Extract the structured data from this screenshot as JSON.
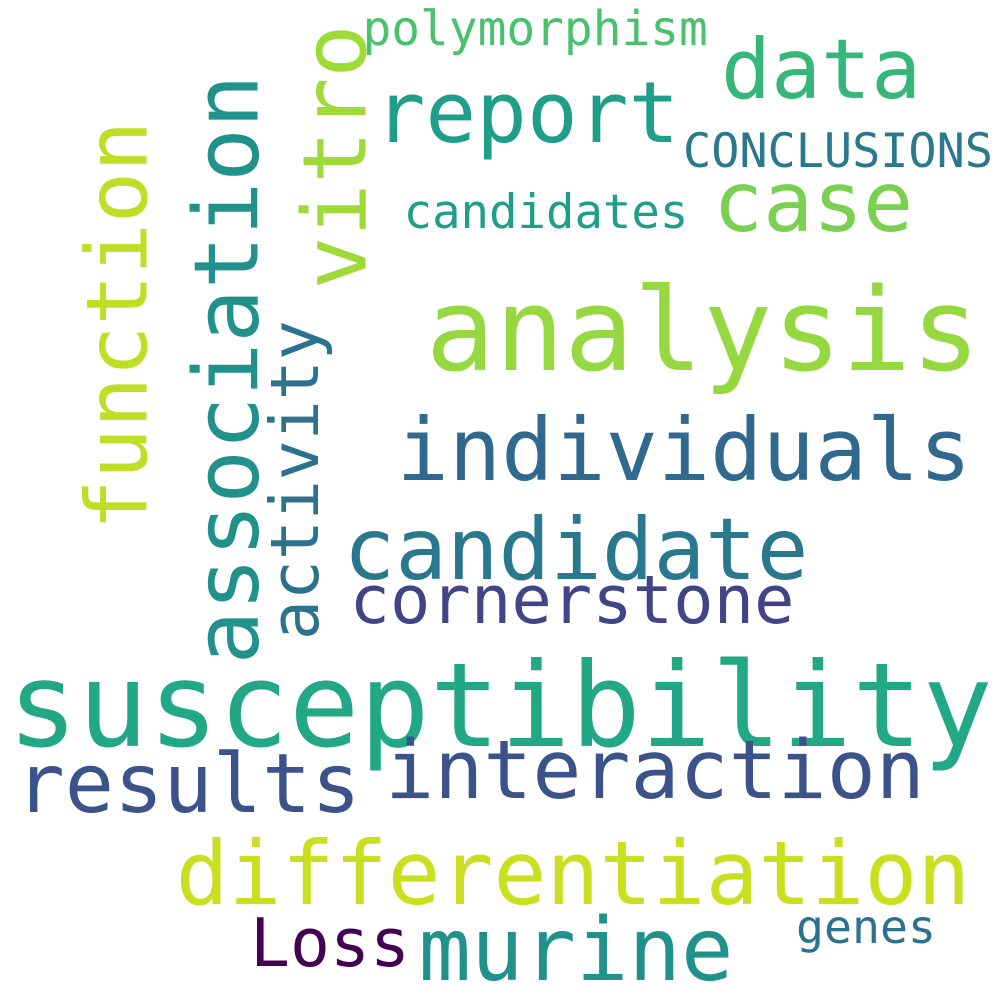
{
  "words": [
    {
      "text": "susceptibility",
      "color": "#22a884",
      "orientation": "horizontal"
    },
    {
      "text": "analysis",
      "color": "#95d840",
      "orientation": "horizontal"
    },
    {
      "text": "individuals",
      "color": "#31688e",
      "orientation": "horizontal"
    },
    {
      "text": "candidate",
      "color": "#2a788e",
      "orientation": "horizontal"
    },
    {
      "text": "differentiation",
      "color": "#c8e020",
      "orientation": "horizontal"
    },
    {
      "text": "interaction",
      "color": "#3b528b",
      "orientation": "horizontal"
    },
    {
      "text": "association",
      "color": "#21918c",
      "orientation": "vertical"
    },
    {
      "text": "function",
      "color": "#bddf26",
      "orientation": "vertical"
    },
    {
      "text": "report",
      "color": "#1f9e89",
      "orientation": "horizontal"
    },
    {
      "text": "murine",
      "color": "#21918c",
      "orientation": "horizontal"
    },
    {
      "text": "results",
      "color": "#3b528b",
      "orientation": "horizontal"
    },
    {
      "text": "data",
      "color": "#35b779",
      "orientation": "horizontal"
    },
    {
      "text": "vitro",
      "color": "#a0da39",
      "orientation": "vertical"
    },
    {
      "text": "case",
      "color": "#7ad151",
      "orientation": "horizontal"
    },
    {
      "text": "cornerstone",
      "color": "#414487",
      "orientation": "horizontal"
    },
    {
      "text": "activity",
      "color": "#2c728e",
      "orientation": "vertical"
    },
    {
      "text": "Loss",
      "color": "#440154",
      "orientation": "horizontal"
    },
    {
      "text": "CONCLUSIONS",
      "color": "#2a788e",
      "orientation": "horizontal"
    },
    {
      "text": "polymorphism",
      "color": "#4ac16d",
      "orientation": "horizontal"
    },
    {
      "text": "candidates",
      "color": "#1f9e89",
      "orientation": "horizontal"
    },
    {
      "text": "genes",
      "color": "#2c728e",
      "orientation": "horizontal"
    }
  ]
}
